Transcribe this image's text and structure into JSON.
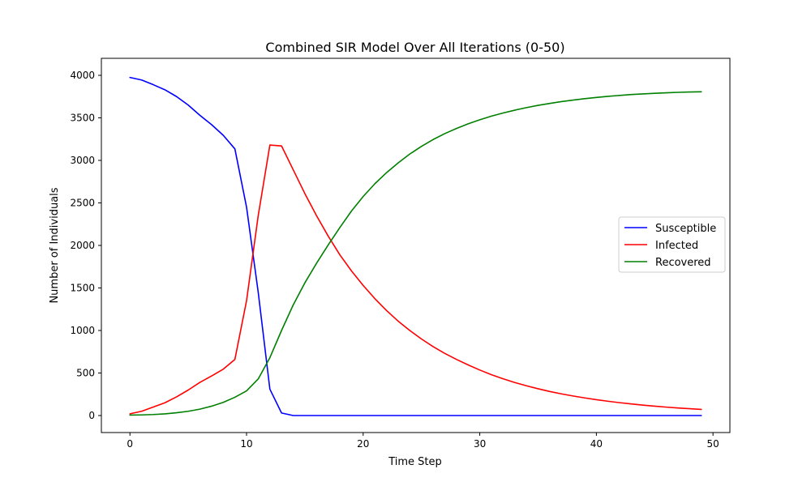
{
  "chart_data": {
    "type": "line",
    "title": "Combined SIR Model Over All Iterations (0-50)",
    "xlabel": "Time Step",
    "ylabel": "Number of Individuals",
    "xlim": [
      -2.45,
      51.45
    ],
    "ylim": [
      -200,
      4200
    ],
    "x_ticks": [
      "0",
      "10",
      "20",
      "30",
      "40",
      "50"
    ],
    "y_ticks": [
      "0",
      "500",
      "1000",
      "1500",
      "2000",
      "2500",
      "3000",
      "3500",
      "4000"
    ],
    "grid": false,
    "legend_position": "center-right",
    "x": [
      0,
      1,
      2,
      3,
      4,
      5,
      6,
      7,
      8,
      9,
      10,
      11,
      12,
      13,
      14,
      15,
      16,
      17,
      18,
      19,
      20,
      21,
      22,
      23,
      24,
      25,
      26,
      27,
      28,
      29,
      30,
      31,
      32,
      33,
      34,
      35,
      36,
      37,
      38,
      39,
      40,
      41,
      42,
      43,
      44,
      45,
      46,
      47,
      48,
      49
    ],
    "series": [
      {
        "name": "Susceptible",
        "color": "#0000ff",
        "values": [
          3975,
          3945,
          3890,
          3830,
          3750,
          3650,
          3530,
          3420,
          3295,
          3135,
          2450,
          1450,
          310,
          30,
          0,
          0,
          0,
          0,
          0,
          0,
          0,
          0,
          0,
          0,
          0,
          0,
          0,
          0,
          0,
          0,
          0,
          0,
          0,
          0,
          0,
          0,
          0,
          0,
          0,
          0,
          0,
          0,
          0,
          0,
          0,
          0,
          0,
          0,
          0,
          0
        ]
      },
      {
        "name": "Infected",
        "color": "#ff0000",
        "values": [
          20,
          50,
          100,
          150,
          220,
          300,
          390,
          465,
          545,
          660,
          1350,
          2350,
          3180,
          3170,
          2890,
          2610,
          2350,
          2110,
          1890,
          1700,
          1530,
          1375,
          1235,
          1110,
          1000,
          900,
          810,
          730,
          660,
          595,
          535,
          480,
          432,
          388,
          350,
          315,
          283,
          255,
          230,
          207,
          186,
          168,
          151,
          136,
          122,
          110,
          99,
          89,
          80,
          72
        ]
      },
      {
        "name": "Recovered",
        "color": "#008000",
        "values": [
          5,
          7,
          12,
          20,
          33,
          50,
          75,
          110,
          155,
          215,
          290,
          430,
          680,
          1000,
          1300,
          1560,
          1790,
          2005,
          2210,
          2405,
          2575,
          2725,
          2855,
          2970,
          3075,
          3165,
          3245,
          3315,
          3375,
          3430,
          3477,
          3520,
          3557,
          3590,
          3620,
          3647,
          3670,
          3691,
          3709,
          3726,
          3740,
          3753,
          3764,
          3774,
          3782,
          3789,
          3795,
          3800,
          3804,
          3807
        ]
      }
    ]
  }
}
